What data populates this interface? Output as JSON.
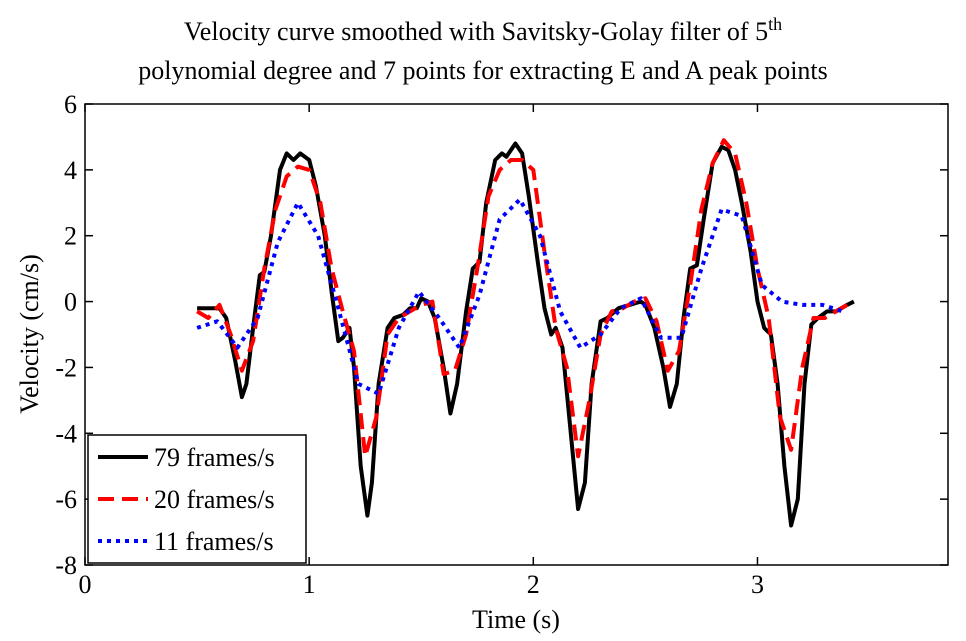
{
  "chart_data": {
    "type": "line",
    "title": {
      "line1": "Velocity curve smoothed with Savitsky-Golay filter of 5",
      "line1_sup": "th",
      "line2": "polynomial degree and 7 points for extracting E and A peak points"
    },
    "xlabel": "Time (s)",
    "ylabel": "Velocity (cm/s)",
    "xlim": [
      0,
      3.85
    ],
    "xticks": [
      0,
      1,
      2,
      3
    ],
    "ylim": [
      -8,
      6
    ],
    "yticks": [
      -8,
      -6,
      -4,
      -2,
      0,
      2,
      4,
      6
    ],
    "legend": "lower left",
    "series": [
      {
        "name": "79 frames/s",
        "color": "#000000",
        "style": "solid",
        "x": [
          0.5,
          0.55,
          0.6,
          0.63,
          0.67,
          0.7,
          0.72,
          0.75,
          0.78,
          0.8,
          0.83,
          0.87,
          0.9,
          0.93,
          0.96,
          1.0,
          1.03,
          1.07,
          1.1,
          1.13,
          1.15,
          1.18,
          1.2,
          1.23,
          1.26,
          1.28,
          1.31,
          1.35,
          1.38,
          1.42,
          1.45,
          1.48,
          1.5,
          1.53,
          1.56,
          1.6,
          1.63,
          1.66,
          1.7,
          1.73,
          1.76,
          1.79,
          1.83,
          1.86,
          1.88,
          1.92,
          1.95,
          1.98,
          2.02,
          2.05,
          2.08,
          2.1,
          2.13,
          2.16,
          2.2,
          2.23,
          2.26,
          2.3,
          2.33,
          2.38,
          2.43,
          2.48,
          2.5,
          2.54,
          2.58,
          2.61,
          2.64,
          2.67,
          2.7,
          2.73,
          2.76,
          2.8,
          2.84,
          2.87,
          2.9,
          2.93,
          2.97,
          3.0,
          3.03,
          3.06,
          3.09,
          3.12,
          3.15,
          3.18,
          3.21,
          3.24,
          3.27,
          3.31,
          3.35,
          3.4,
          3.43
        ],
        "values": [
          -0.2,
          -0.2,
          -0.2,
          -0.5,
          -1.8,
          -2.9,
          -2.5,
          -0.8,
          0.8,
          0.9,
          2.0,
          4.0,
          4.5,
          4.3,
          4.5,
          4.3,
          3.5,
          2.0,
          0.3,
          -1.2,
          -1.1,
          -0.8,
          -2.0,
          -5.0,
          -6.5,
          -5.5,
          -2.5,
          -0.8,
          -0.5,
          -0.4,
          -0.2,
          -0.2,
          0.1,
          0.0,
          -0.5,
          -2.0,
          -3.4,
          -2.5,
          -0.3,
          1.0,
          1.2,
          3.0,
          4.3,
          4.5,
          4.4,
          4.8,
          4.5,
          3.2,
          1.2,
          -0.2,
          -1.0,
          -0.8,
          -1.4,
          -3.5,
          -6.3,
          -5.5,
          -2.5,
          -0.6,
          -0.5,
          -0.2,
          -0.1,
          0.0,
          -0.1,
          -0.8,
          -2.0,
          -3.2,
          -2.5,
          -0.5,
          1.0,
          1.1,
          2.5,
          4.2,
          4.7,
          4.6,
          4.0,
          3.0,
          1.5,
          0.0,
          -0.8,
          -1.0,
          -2.5,
          -5.0,
          -6.8,
          -6.0,
          -2.5,
          -0.7,
          -0.5,
          -0.3,
          -0.3,
          -0.1,
          0.0
        ]
      },
      {
        "name": "20 frames/s",
        "color": "#ff0000",
        "style": "dashed",
        "x": [
          0.5,
          0.55,
          0.6,
          0.65,
          0.7,
          0.75,
          0.8,
          0.85,
          0.9,
          0.95,
          1.0,
          1.05,
          1.1,
          1.15,
          1.2,
          1.25,
          1.3,
          1.35,
          1.4,
          1.45,
          1.5,
          1.55,
          1.6,
          1.65,
          1.7,
          1.75,
          1.8,
          1.85,
          1.9,
          1.95,
          2.0,
          2.05,
          2.1,
          2.15,
          2.2,
          2.25,
          2.3,
          2.35,
          2.4,
          2.45,
          2.5,
          2.55,
          2.6,
          2.65,
          2.7,
          2.75,
          2.8,
          2.85,
          2.9,
          2.95,
          3.0,
          3.05,
          3.1,
          3.15,
          3.2,
          3.25,
          3.3,
          3.35,
          3.4
        ],
        "values": [
          -0.3,
          -0.5,
          -0.1,
          -1.0,
          -2.1,
          -1.2,
          1.0,
          2.8,
          3.8,
          4.1,
          4.0,
          3.0,
          1.0,
          -0.3,
          -1.5,
          -4.7,
          -3.5,
          -1.0,
          -0.5,
          -0.3,
          -0.1,
          0.0,
          -2.2,
          -2.1,
          -1.0,
          1.0,
          3.2,
          4.0,
          4.3,
          4.3,
          4.0,
          1.5,
          -0.8,
          -2.0,
          -4.7,
          -3.0,
          -1.0,
          -0.3,
          -0.2,
          0.0,
          0.1,
          -0.6,
          -2.1,
          -1.5,
          0.5,
          2.8,
          4.2,
          4.9,
          4.5,
          3.0,
          1.0,
          -0.5,
          -3.5,
          -4.5,
          -2.0,
          -0.5,
          -0.5,
          -0.3,
          -0.1
        ]
      },
      {
        "name": "11 frames/s",
        "color": "#0000ff",
        "style": "dotted",
        "x": [
          0.5,
          0.59,
          0.68,
          0.77,
          0.86,
          0.95,
          1.04,
          1.13,
          1.22,
          1.31,
          1.4,
          1.49,
          1.58,
          1.67,
          1.76,
          1.85,
          1.94,
          2.03,
          2.12,
          2.21,
          2.3,
          2.39,
          2.48,
          2.57,
          2.66,
          2.75,
          2.84,
          2.93,
          3.02,
          3.11,
          3.2,
          3.29,
          3.38
        ],
        "values": [
          -0.8,
          -0.6,
          -1.4,
          -0.5,
          1.8,
          3.0,
          2.0,
          -0.2,
          -2.5,
          -2.8,
          -0.8,
          0.3,
          -0.5,
          -1.4,
          0.2,
          2.5,
          3.1,
          2.0,
          -0.3,
          -1.4,
          -1.0,
          -0.2,
          0.1,
          -1.1,
          -1.1,
          1.0,
          2.8,
          2.6,
          0.5,
          0.0,
          -0.1,
          -0.1,
          -0.3
        ]
      }
    ]
  }
}
